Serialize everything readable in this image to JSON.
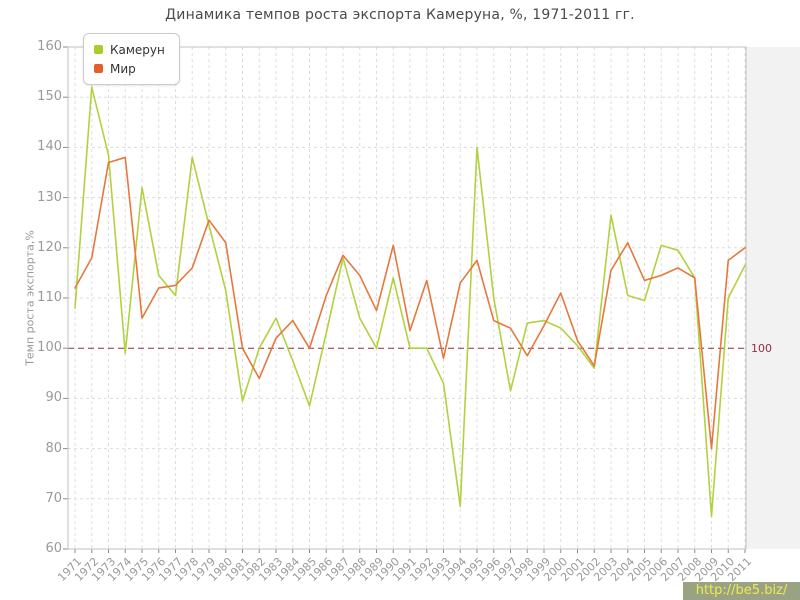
{
  "title": "Динамика темпов роста экспорта Камеруна, %, 1971-2011 гг.",
  "y_axis_title": "Темп роста экспорта,%",
  "reference_line_label": "100",
  "watermark": "http://be5.biz/",
  "legend": [
    {
      "label": "Камерун",
      "color": "#a9cc29"
    },
    {
      "label": "Мир",
      "color": "#e2612a"
    }
  ],
  "colors": {
    "cameroon_line": "#b2d13f",
    "world_line": "#e6783e",
    "reference_line": "#932f3f",
    "grid": "#dddddd",
    "plot_border": "#c0c0c0",
    "tick": "#8a8a8a",
    "axis_text": "#999999"
  },
  "chart_data": {
    "type": "line",
    "x": [
      1971,
      1972,
      1973,
      1974,
      1975,
      1976,
      1977,
      1978,
      1979,
      1980,
      1981,
      1982,
      1983,
      1984,
      1985,
      1986,
      1987,
      1988,
      1989,
      1990,
      1991,
      1992,
      1993,
      1994,
      1995,
      1996,
      1997,
      1998,
      1999,
      2000,
      2001,
      2002,
      2003,
      2004,
      2005,
      2006,
      2007,
      2008,
      2009,
      2010,
      2011
    ],
    "series": [
      {
        "name": "Камерун",
        "values": [
          108,
          152,
          138.5,
          99,
          132,
          114.5,
          110.5,
          138,
          124.5,
          111.5,
          89.5,
          100,
          106,
          97.5,
          88.5,
          103,
          118,
          106,
          100,
          114,
          100,
          100,
          93,
          68.5,
          140,
          110,
          91.5,
          105,
          105.5,
          104,
          100.5,
          96,
          126.5,
          110.5,
          109.5,
          120.5,
          119.5,
          114,
          66.5,
          110,
          116.5
        ]
      },
      {
        "name": "Мир",
        "values": [
          112,
          118,
          137,
          138,
          106,
          112,
          112.5,
          116,
          125.5,
          121,
          100,
          94,
          102,
          105.5,
          100,
          110.5,
          118.5,
          114.5,
          107.5,
          120.5,
          103.5,
          113.5,
          98,
          113,
          117.5,
          105.5,
          104,
          98.5,
          104.5,
          111,
          101.5,
          96.5,
          115.5,
          121,
          113.5,
          114.5,
          116,
          114,
          80,
          117.5,
          120
        ]
      }
    ],
    "title": "Динамика темпов роста экспорта Камеруна, %, 1971-2011 гг.",
    "xlabel": "",
    "ylabel": "Темп роста экспорта,%",
    "ylim": [
      60,
      160
    ],
    "yticks": [
      60,
      70,
      80,
      90,
      100,
      110,
      120,
      130,
      140,
      150,
      160
    ],
    "reference_line": 100,
    "grid": true,
    "legend_position": "top-left"
  }
}
